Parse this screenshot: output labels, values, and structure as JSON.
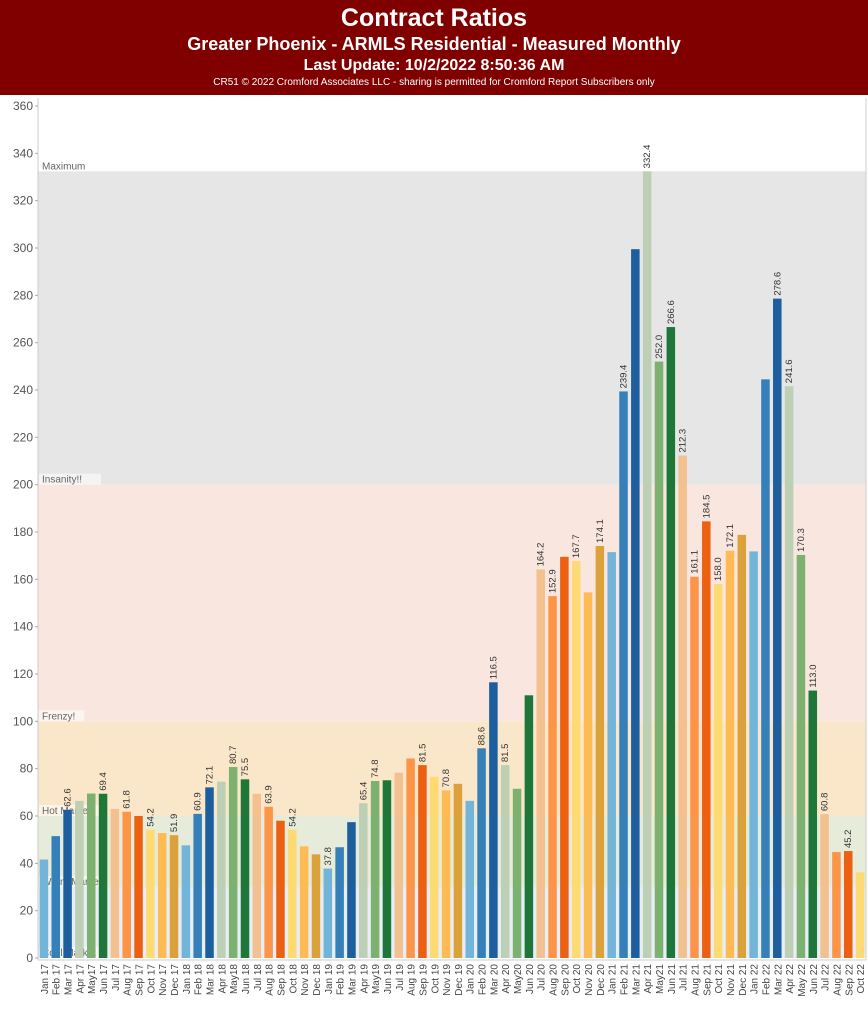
{
  "header": {
    "title": "Contract Ratios",
    "subtitle": "Greater Phoenix - ARMLS Residential - Measured Monthly",
    "update": "Last Update: 10/2/2022 8:50:36 AM",
    "credit": "CR51 © 2022 Cromford Associates LLC - sharing is permitted for Cromford Report Subscribers only"
  },
  "chart_data": {
    "type": "bar",
    "title": "Contract Ratios",
    "ylim": [
      0,
      360
    ],
    "yticks": [
      0,
      20,
      40,
      60,
      80,
      100,
      120,
      140,
      160,
      180,
      200,
      220,
      240,
      260,
      280,
      300,
      320,
      340,
      360
    ],
    "zones": [
      {
        "label": "Cool Market",
        "from": 0,
        "to": 30,
        "color": "#e8eef7"
      },
      {
        "label": "Warm Market",
        "from": 30,
        "to": 60,
        "color": "#e7ebd9"
      },
      {
        "label": "Hot Market",
        "from": 60,
        "to": 100,
        "color": "#fae7c9"
      },
      {
        "label": "Frenzy!",
        "from": 100,
        "to": 200,
        "color": "#f9e7df"
      },
      {
        "label": "Insanity!!",
        "from": 200,
        "to": 332.4,
        "color": "#e6e6e6"
      },
      {
        "label": "Maximum",
        "from": 332.4,
        "to": 332.4,
        "color": "#e6e6e6"
      }
    ],
    "month_colors": [
      "#73b5d9",
      "#3580b8",
      "#1d5e9e",
      "#bdcfb5",
      "#7db170",
      "#1e7738",
      "#f3c08f",
      "#fd9549",
      "#ec6012",
      "#fedb72",
      "#febb54",
      "#dba23c"
    ],
    "categories": [
      "Jan 17",
      "Feb 17",
      "Mar 17",
      "Apr 17",
      "May17",
      "Jun 17",
      "Jul 17",
      "Aug 17",
      "Sep 17",
      "Oct 17",
      "Nov 17",
      "Dec 17",
      "Jan 18",
      "Feb 18",
      "Mar 18",
      "Apr 18",
      "May18",
      "Jun 18",
      "Jul 18",
      "Aug 18",
      "Sep 18",
      "Oct 18",
      "Nov 18",
      "Dec 18",
      "Jan 19",
      "Feb 19",
      "Mar 19",
      "Apr 19",
      "May19",
      "Jun 19",
      "Jul 19",
      "Aug 19",
      "Sep 19",
      "Oct 19",
      "Nov 19",
      "Dec 19",
      "Jan 20",
      "Feb 20",
      "Mar 20",
      "Apr 20",
      "May20",
      "Jun 20",
      "Jul 20",
      "Aug 20",
      "Sep 20",
      "Oct 20",
      "Nov 20",
      "Dec 20",
      "Jan 21",
      "Feb 21",
      "Mar 21",
      "Apr 21",
      "May21",
      "Jun 21",
      "Jul 21",
      "Aug 21",
      "Sep 21",
      "Oct 21",
      "Nov 21",
      "Dec 21",
      "Jan 22",
      "Feb 22",
      "Mar 22",
      "Apr 22",
      "May 22",
      "Jun 22",
      "Jul 22",
      "Aug 22",
      "Sep 22",
      "Oct 22"
    ],
    "values": [
      41.6,
      51.5,
      62.6,
      66.4,
      69.5,
      69.4,
      63.0,
      61.8,
      60.0,
      54.2,
      52.8,
      51.9,
      47.6,
      60.9,
      72.1,
      74.5,
      80.7,
      75.5,
      69.4,
      63.9,
      58.0,
      54.2,
      47.2,
      43.8,
      37.8,
      46.8,
      57.4,
      65.4,
      74.8,
      75.1,
      78.3,
      84.3,
      81.5,
      76.6,
      70.8,
      73.6,
      66.4,
      88.6,
      116.5,
      81.5,
      71.5,
      111.0,
      164.2,
      152.9,
      169.5,
      167.7,
      154.5,
      174.1,
      171.5,
      239.4,
      299.5,
      332.4,
      252.0,
      266.6,
      212.3,
      161.1,
      184.5,
      158.0,
      172.1,
      178.8,
      171.8,
      244.5,
      278.6,
      241.6,
      170.3,
      113.0,
      60.8,
      44.8,
      45.2,
      36.2
    ],
    "data_labels": [
      "",
      null,
      "62.6",
      null,
      null,
      "69.4",
      null,
      "61.8",
      null,
      "54.2",
      null,
      "51.9",
      null,
      "60.9",
      "72.1",
      null,
      "80.7",
      "75.5",
      null,
      "63.9",
      null,
      "54.2",
      null,
      null,
      "37.8",
      null,
      null,
      "65.4",
      "74.8",
      null,
      null,
      null,
      "81.5",
      null,
      "70.8",
      null,
      null,
      "88.6",
      "116.5",
      "81.5",
      null,
      null,
      "164.2",
      "152.9",
      null,
      "167.7",
      null,
      "174.1",
      null,
      "239.4",
      null,
      "332.4",
      "252.0",
      "266.6",
      "212.3",
      "161.1",
      "184.5",
      "158.0",
      "172.1",
      null,
      null,
      null,
      "278.6",
      "241.6",
      "170.3",
      "113.0",
      "60.8",
      null,
      "45.2",
      null
    ]
  }
}
